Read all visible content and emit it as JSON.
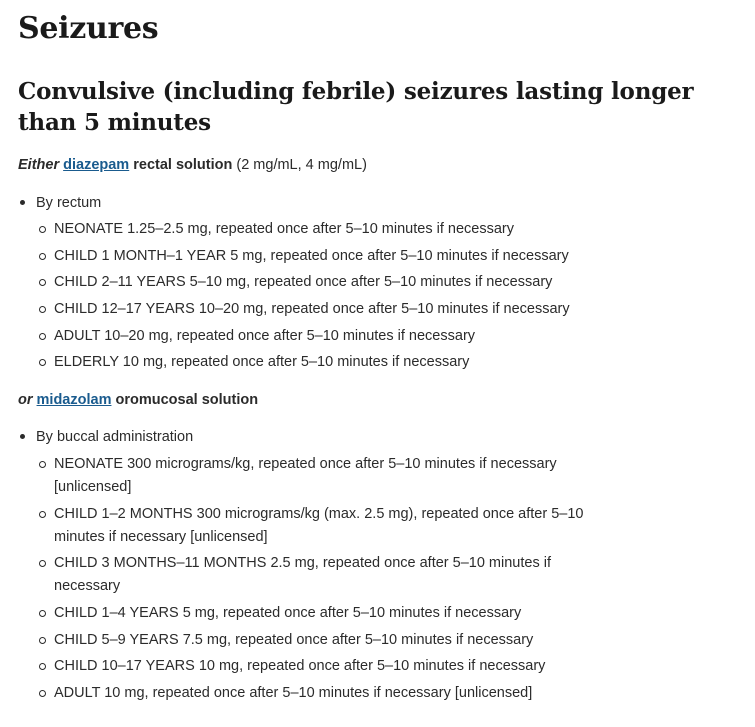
{
  "title": "Seizures",
  "subtitle": "Convulsive (including febrile) seizures lasting longer than 5 minutes",
  "block1": {
    "conj": "Either",
    "drug": "diazepam",
    "form": "rectal solution",
    "strength": "(2 mg/mL, 4 mg/mL)",
    "route": "By rectum",
    "doses": [
      {
        "age": "NEONATE",
        "text": "1.25–2.5 mg, repeated once after 5–10 minutes if necessary"
      },
      {
        "age": "CHILD 1 MONTH–1 YEAR",
        "text": "5 mg, repeated once after 5–10 minutes if necessary"
      },
      {
        "age": "CHILD 2–11 YEARS",
        "text": "5–10 mg, repeated once after 5–10 minutes if necessary"
      },
      {
        "age": "CHILD 12–17 YEARS",
        "text": "10–20 mg, repeated once after 5–10 minutes if necessary"
      },
      {
        "age": "ADULT",
        "text": "10–20 mg, repeated once after 5–10 minutes if necessary"
      },
      {
        "age": "ELDERLY",
        "text": "10 mg, repeated once after 5–10 minutes if necessary"
      }
    ]
  },
  "block2": {
    "conj": "or",
    "drug": "midazolam",
    "form": "oromucosal solution",
    "route": "By buccal administration",
    "doses": [
      {
        "age": "NEONATE",
        "text": "300 micrograms/kg, repeated once after 5–10 minutes if necessary [unlicensed]"
      },
      {
        "age": "CHILD 1–2 MONTHS",
        "text": "300 micrograms/kg (max. 2.5 mg), repeated once after 5–10 minutes if necessary [unlicensed]"
      },
      {
        "age": "CHILD 3 MONTHS–11 MONTHS",
        "text": "2.5 mg, repeated once after 5–10 minutes if necessary"
      },
      {
        "age": "CHILD 1–4 YEARS",
        "text": "5 mg, repeated once after 5–10 minutes if necessary"
      },
      {
        "age": "CHILD 5–9 YEARS",
        "text": "7.5 mg, repeated once after 5–10 minutes if necessary"
      },
      {
        "age": "CHILD 10–17 YEARS",
        "text": "10 mg, repeated once after 5–10 minutes if necessary"
      },
      {
        "age": "ADULT",
        "text": "10 mg, repeated once after 5–10 minutes if necessary [unlicensed]"
      }
    ]
  }
}
